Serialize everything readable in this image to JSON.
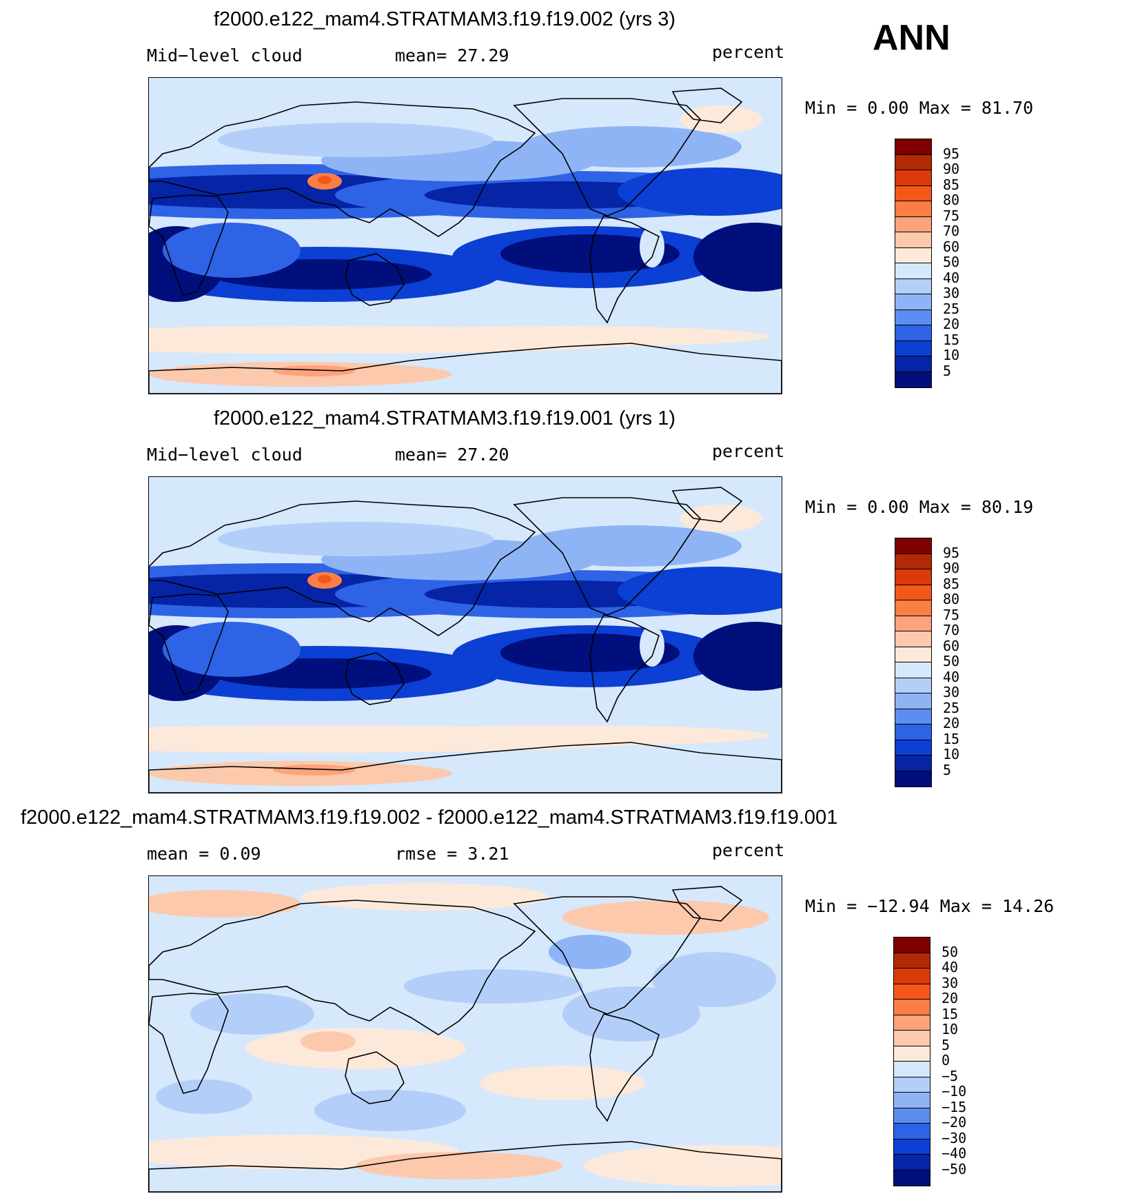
{
  "season": "ANN",
  "panels": [
    {
      "title": "f2000.e122_mam4.STRATMAM3.f19.f19.002 (yrs 3)",
      "left_label": "Mid−level  cloud",
      "center_label": "mean=   27.29",
      "units": "percent",
      "minmax": "Min  =     0.00  Max  =    81.70",
      "colorbar_labels": [
        "95",
        "90",
        "85",
        "80",
        "75",
        "70",
        "60",
        "50",
        "40",
        "30",
        "25",
        "20",
        "15",
        "10",
        "5"
      ],
      "colors": [
        "#7f0000",
        "#b22a05",
        "#dc3a0a",
        "#f5561a",
        "#fb7e45",
        "#fca37b",
        "#fdc9ad",
        "#fde9da",
        "#d6e8fb",
        "#b3cff9",
        "#8fb4f5",
        "#5b8ef0",
        "#2e63e6",
        "#0c3fd3",
        "#0525a6",
        "#000f7c"
      ],
      "cbar_order_top_to_bottom": true,
      "type": "model"
    },
    {
      "title": "f2000.e122_mam4.STRATMAM3.f19.f19.001 (yrs 1)",
      "left_label": "Mid−level  cloud",
      "center_label": "mean=   27.20",
      "units": "percent",
      "minmax": "Min  =     0.00  Max  =    80.19",
      "colorbar_labels": [
        "95",
        "90",
        "85",
        "80",
        "75",
        "70",
        "60",
        "50",
        "40",
        "30",
        "25",
        "20",
        "15",
        "10",
        "5"
      ],
      "colors": [
        "#7f0000",
        "#b22a05",
        "#dc3a0a",
        "#f5561a",
        "#fb7e45",
        "#fca37b",
        "#fdc9ad",
        "#fde9da",
        "#d6e8fb",
        "#b3cff9",
        "#8fb4f5",
        "#5b8ef0",
        "#2e63e6",
        "#0c3fd3",
        "#0525a6",
        "#000f7c"
      ],
      "type": "model"
    },
    {
      "title": "f2000.e122_mam4.STRATMAM3.f19.f19.002 - f2000.e122_mam4.STRATMAM3.f19.f19.001",
      "left_label": "mean  =     0.09",
      "center_label": "rmse  =     3.21",
      "units": "percent",
      "minmax": "Min  =  −12.94  Max  =    14.26",
      "colorbar_labels": [
        "50",
        "40",
        "30",
        "20",
        "15",
        "10",
        "5",
        "0",
        "−5",
        "−10",
        "−15",
        "−20",
        "−30",
        "−40",
        "−50"
      ],
      "colors": [
        "#7f0000",
        "#b22a05",
        "#dc3a0a",
        "#f5561a",
        "#fb7e45",
        "#fca37b",
        "#fdc9ad",
        "#fde9da",
        "#d6e8fb",
        "#b3cff9",
        "#8fb4f5",
        "#5b8ef0",
        "#2e63e6",
        "#0c3fd3",
        "#0525a6",
        "#000f7c"
      ],
      "type": "diff"
    }
  ]
}
